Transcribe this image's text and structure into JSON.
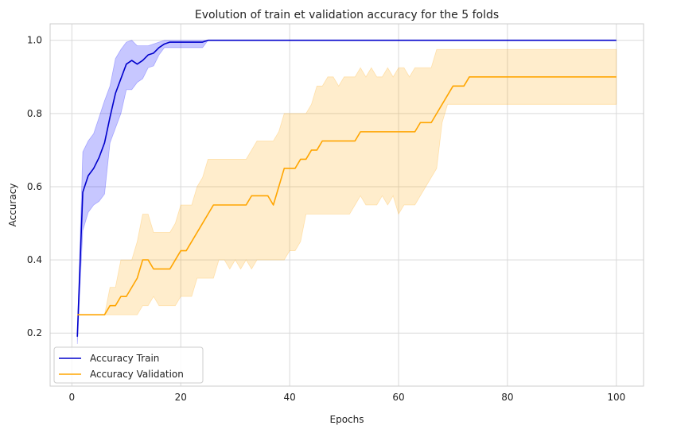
{
  "chart_data": {
    "type": "line",
    "title": "Evolution of train et validation accuracy for the 5 folds",
    "xlabel": "Epochs",
    "ylabel": "Accuracy",
    "xlim": [
      -4,
      105
    ],
    "ylim": [
      0.055,
      1.045
    ],
    "xticks": [
      0,
      20,
      40,
      60,
      80,
      100
    ],
    "yticks": [
      0.2,
      0.4,
      0.6,
      0.8,
      1.0
    ],
    "xtick_labels": [
      "0",
      "20",
      "40",
      "60",
      "80",
      "100"
    ],
    "ytick_labels": [
      "0.2",
      "0.4",
      "0.6",
      "0.8",
      "1.0"
    ],
    "grid": true,
    "legend_position": "lower-left",
    "series": [
      {
        "name": "Accuracy Train",
        "color": "#0000cc",
        "x": [
          1,
          2,
          3,
          4,
          5,
          6,
          7,
          8,
          9,
          10,
          11,
          12,
          13,
          14,
          15,
          16,
          17,
          18,
          19,
          20,
          21,
          22,
          23,
          24,
          25,
          26,
          100
        ],
        "y": [
          0.19,
          0.585,
          0.63,
          0.65,
          0.68,
          0.72,
          0.79,
          0.855,
          0.895,
          0.935,
          0.945,
          0.935,
          0.945,
          0.96,
          0.965,
          0.98,
          0.99,
          0.995,
          0.995,
          0.995,
          0.995,
          0.995,
          0.995,
          0.995,
          1.0,
          1.0,
          1.0
        ],
        "band_lower": [
          0.17,
          0.48,
          0.53,
          0.55,
          0.56,
          0.58,
          0.72,
          0.76,
          0.8,
          0.865,
          0.865,
          0.885,
          0.895,
          0.925,
          0.93,
          0.96,
          0.98,
          0.98,
          0.98,
          0.98,
          0.98,
          0.98,
          0.98,
          0.98,
          1.0,
          1.0,
          1.0
        ],
        "band_upper": [
          0.2,
          0.695,
          0.725,
          0.745,
          0.79,
          0.835,
          0.875,
          0.95,
          0.975,
          0.995,
          1.0,
          0.985,
          0.985,
          0.985,
          0.99,
          0.995,
          1.0,
          1.0,
          1.0,
          1.0,
          1.0,
          1.0,
          1.0,
          1.0,
          1.0,
          1.0,
          1.0
        ],
        "band_color": "#0000ff"
      },
      {
        "name": "Accuracy Validation",
        "color": "#ffa500",
        "x": [
          1,
          2,
          3,
          4,
          5,
          6,
          7,
          8,
          9,
          10,
          11,
          12,
          13,
          14,
          15,
          16,
          17,
          18,
          19,
          20,
          21,
          22,
          23,
          24,
          25,
          26,
          27,
          28,
          29,
          30,
          31,
          32,
          33,
          34,
          35,
          36,
          37,
          38,
          39,
          40,
          41,
          42,
          43,
          44,
          45,
          46,
          47,
          48,
          49,
          50,
          51,
          52,
          53,
          54,
          55,
          56,
          57,
          58,
          59,
          60,
          61,
          62,
          63,
          64,
          65,
          66,
          67,
          68,
          69,
          70,
          71,
          72,
          73,
          74,
          100
        ],
        "y": [
          0.25,
          0.25,
          0.25,
          0.25,
          0.25,
          0.25,
          0.275,
          0.275,
          0.3,
          0.3,
          0.325,
          0.35,
          0.4,
          0.4,
          0.375,
          0.375,
          0.375,
          0.375,
          0.4,
          0.425,
          0.425,
          0.45,
          0.475,
          0.5,
          0.525,
          0.55,
          0.55,
          0.55,
          0.55,
          0.55,
          0.55,
          0.55,
          0.575,
          0.575,
          0.575,
          0.575,
          0.55,
          0.6,
          0.65,
          0.65,
          0.65,
          0.675,
          0.675,
          0.7,
          0.7,
          0.725,
          0.725,
          0.725,
          0.725,
          0.725,
          0.725,
          0.725,
          0.75,
          0.75,
          0.75,
          0.75,
          0.75,
          0.75,
          0.75,
          0.75,
          0.75,
          0.75,
          0.75,
          0.775,
          0.775,
          0.775,
          0.8,
          0.825,
          0.85,
          0.875,
          0.875,
          0.875,
          0.9,
          0.9,
          0.9
        ],
        "band_lower": [
          0.25,
          0.25,
          0.25,
          0.25,
          0.25,
          0.25,
          0.25,
          0.25,
          0.25,
          0.25,
          0.25,
          0.25,
          0.275,
          0.275,
          0.3,
          0.275,
          0.275,
          0.275,
          0.275,
          0.3,
          0.3,
          0.3,
          0.35,
          0.35,
          0.35,
          0.35,
          0.4,
          0.4,
          0.375,
          0.4,
          0.375,
          0.4,
          0.375,
          0.4,
          0.4,
          0.4,
          0.4,
          0.4,
          0.4,
          0.425,
          0.425,
          0.45,
          0.525,
          0.525,
          0.525,
          0.525,
          0.525,
          0.525,
          0.525,
          0.525,
          0.525,
          0.55,
          0.575,
          0.55,
          0.55,
          0.55,
          0.575,
          0.55,
          0.575,
          0.525,
          0.55,
          0.55,
          0.55,
          0.575,
          0.6,
          0.625,
          0.65,
          0.775,
          0.825,
          0.825,
          0.825,
          0.825,
          0.825,
          0.825,
          0.825
        ],
        "band_upper": [
          0.25,
          0.25,
          0.25,
          0.25,
          0.25,
          0.25,
          0.325,
          0.325,
          0.4,
          0.4,
          0.4,
          0.45,
          0.525,
          0.525,
          0.475,
          0.475,
          0.475,
          0.475,
          0.5,
          0.55,
          0.55,
          0.55,
          0.6,
          0.625,
          0.675,
          0.675,
          0.675,
          0.675,
          0.675,
          0.675,
          0.675,
          0.675,
          0.7,
          0.725,
          0.725,
          0.725,
          0.725,
          0.75,
          0.8,
          0.8,
          0.8,
          0.8,
          0.8,
          0.825,
          0.875,
          0.875,
          0.9,
          0.9,
          0.875,
          0.9,
          0.9,
          0.9,
          0.925,
          0.9,
          0.925,
          0.9,
          0.9,
          0.925,
          0.9,
          0.925,
          0.925,
          0.9,
          0.925,
          0.925,
          0.925,
          0.925,
          0.975,
          0.975,
          0.975,
          0.975,
          0.975,
          0.975,
          0.975,
          0.975,
          0.975
        ],
        "band_color": "#ffa500"
      }
    ]
  }
}
